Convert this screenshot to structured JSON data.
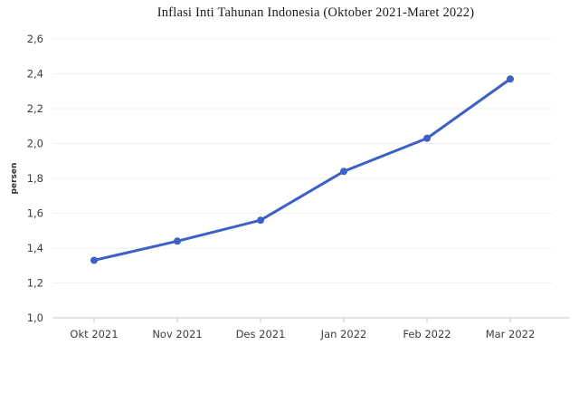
{
  "chart_data": {
    "type": "line",
    "title": "Inflasi Inti Tahunan Indonesia (Oktober 2021-Maret 2022)",
    "categories": [
      "Okt 2021",
      "Nov 2021",
      "Des 2021",
      "Jan 2022",
      "Feb 2022",
      "Mar 2022"
    ],
    "values": [
      1.33,
      1.44,
      1.56,
      1.84,
      2.03,
      2.37
    ],
    "series_name": "Inflasi inti tahunan",
    "xlabel": "",
    "ylabel": "persen",
    "ylim": [
      1.0,
      2.6
    ],
    "ytick_step": 0.2,
    "ytick_labels": [
      "1,0",
      "1,2",
      "1,4",
      "1,6",
      "1,8",
      "2,0",
      "2,2",
      "2,4",
      "2,6"
    ],
    "grid": true,
    "legend": "none",
    "colors": {
      "line": "#3c60c6",
      "point": "#3c60c6",
      "grid": "#efefef",
      "axis": "#c8c8c8",
      "tick": "#c0c0c0",
      "text": "#3c3c3c",
      "title": "#1a1a1a",
      "background": "#ffffff"
    }
  }
}
